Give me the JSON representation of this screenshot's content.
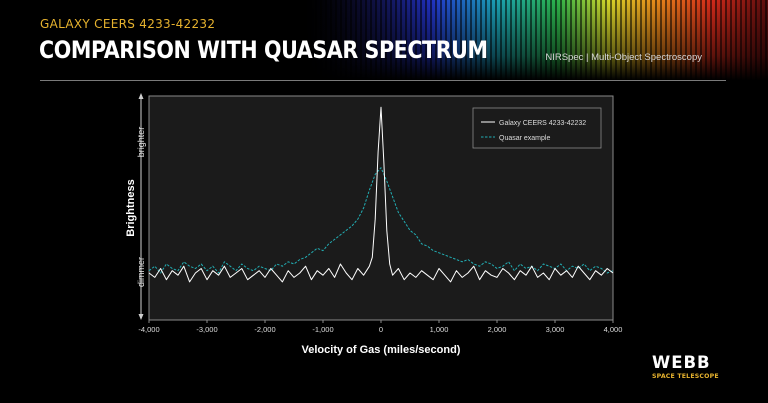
{
  "header": {
    "kicker": "GALAXY CEERS 4233-42232",
    "title": "COMPARISON WITH QUASAR SPECTRUM",
    "instrument": "NIRSpec | Multi-Object Spectroscopy"
  },
  "branding": {
    "logo_word": "WEBB",
    "logo_subtitle": "SPACE TELESCOPE"
  },
  "colors": {
    "accent_yellow": "#e6b22e",
    "galaxy_line": "#ffffff",
    "quasar_line": "#22aeb4",
    "plot_bg": "#1b1b1b"
  },
  "chart_data": {
    "type": "line",
    "title": "",
    "xlabel": "Velocity of Gas (miles/second)",
    "ylabel": "Brightness",
    "y_top_label": "brighter",
    "y_bottom_label": "dimmer",
    "xlim": [
      -4000,
      4000
    ],
    "ylim": [
      0,
      1
    ],
    "grid": false,
    "legend_position": "top-right",
    "x_ticks": [
      -4000,
      -3000,
      -2000,
      -1000,
      0,
      1000,
      2000,
      3000,
      4000
    ],
    "x_tick_labels": [
      "-4,000",
      "-3,000",
      "-2,000",
      "-1,000",
      "0",
      "1,000",
      "2,000",
      "3,000",
      "4,000"
    ],
    "series": [
      {
        "name": "Galaxy CEERS 4233-42232",
        "style": "solid",
        "x": [
          -4000,
          -3900,
          -3800,
          -3700,
          -3600,
          -3500,
          -3400,
          -3300,
          -3200,
          -3100,
          -3000,
          -2900,
          -2800,
          -2700,
          -2600,
          -2500,
          -2400,
          -2300,
          -2200,
          -2100,
          -2000,
          -1900,
          -1800,
          -1700,
          -1600,
          -1500,
          -1400,
          -1300,
          -1200,
          -1100,
          -1000,
          -900,
          -800,
          -700,
          -600,
          -500,
          -400,
          -300,
          -200,
          -150,
          -100,
          -50,
          0,
          50,
          100,
          150,
          200,
          300,
          400,
          500,
          600,
          700,
          800,
          900,
          1000,
          1100,
          1200,
          1300,
          1400,
          1500,
          1600,
          1700,
          1800,
          1900,
          2000,
          2100,
          2200,
          2300,
          2400,
          2500,
          2600,
          2700,
          2800,
          2900,
          3000,
          3100,
          3200,
          3300,
          3400,
          3500,
          3600,
          3700,
          3800,
          3900,
          4000
        ],
        "y": [
          0.21,
          0.19,
          0.23,
          0.18,
          0.22,
          0.2,
          0.24,
          0.17,
          0.21,
          0.23,
          0.18,
          0.22,
          0.2,
          0.24,
          0.19,
          0.21,
          0.23,
          0.18,
          0.2,
          0.22,
          0.19,
          0.23,
          0.2,
          0.17,
          0.22,
          0.19,
          0.21,
          0.24,
          0.18,
          0.22,
          0.2,
          0.23,
          0.19,
          0.25,
          0.21,
          0.18,
          0.23,
          0.2,
          0.24,
          0.28,
          0.45,
          0.75,
          0.95,
          0.7,
          0.4,
          0.25,
          0.2,
          0.23,
          0.18,
          0.21,
          0.19,
          0.22,
          0.2,
          0.18,
          0.23,
          0.2,
          0.17,
          0.22,
          0.19,
          0.21,
          0.24,
          0.18,
          0.22,
          0.2,
          0.19,
          0.23,
          0.21,
          0.18,
          0.22,
          0.2,
          0.24,
          0.19,
          0.21,
          0.18,
          0.23,
          0.2,
          0.22,
          0.19,
          0.24,
          0.21,
          0.18,
          0.22,
          0.2,
          0.23,
          0.21
        ]
      },
      {
        "name": "Quasar example",
        "style": "dashed",
        "x": [
          -4000,
          -3900,
          -3800,
          -3700,
          -3600,
          -3500,
          -3400,
          -3300,
          -3200,
          -3100,
          -3000,
          -2900,
          -2800,
          -2700,
          -2600,
          -2500,
          -2400,
          -2300,
          -2200,
          -2100,
          -2000,
          -1900,
          -1800,
          -1700,
          -1600,
          -1500,
          -1400,
          -1300,
          -1200,
          -1100,
          -1000,
          -900,
          -800,
          -700,
          -600,
          -500,
          -400,
          -300,
          -200,
          -100,
          0,
          100,
          200,
          300,
          400,
          500,
          600,
          700,
          800,
          900,
          1000,
          1100,
          1200,
          1300,
          1400,
          1500,
          1600,
          1700,
          1800,
          1900,
          2000,
          2100,
          2200,
          2300,
          2400,
          2500,
          2600,
          2700,
          2800,
          2900,
          3000,
          3100,
          3200,
          3300,
          3400,
          3500,
          3600,
          3700,
          3800,
          3900,
          4000
        ],
        "y": [
          0.22,
          0.24,
          0.21,
          0.25,
          0.23,
          0.22,
          0.26,
          0.24,
          0.23,
          0.25,
          0.22,
          0.24,
          0.21,
          0.26,
          0.24,
          0.22,
          0.25,
          0.23,
          0.22,
          0.24,
          0.23,
          0.22,
          0.25,
          0.24,
          0.26,
          0.25,
          0.27,
          0.28,
          0.3,
          0.32,
          0.31,
          0.34,
          0.36,
          0.38,
          0.4,
          0.42,
          0.45,
          0.5,
          0.58,
          0.65,
          0.68,
          0.62,
          0.55,
          0.48,
          0.44,
          0.4,
          0.38,
          0.34,
          0.33,
          0.31,
          0.3,
          0.29,
          0.28,
          0.27,
          0.26,
          0.27,
          0.25,
          0.24,
          0.26,
          0.25,
          0.23,
          0.24,
          0.26,
          0.22,
          0.25,
          0.23,
          0.24,
          0.22,
          0.25,
          0.24,
          0.23,
          0.25,
          0.22,
          0.24,
          0.23,
          0.25,
          0.22,
          0.24,
          0.23,
          0.21,
          0.22
        ]
      }
    ]
  }
}
